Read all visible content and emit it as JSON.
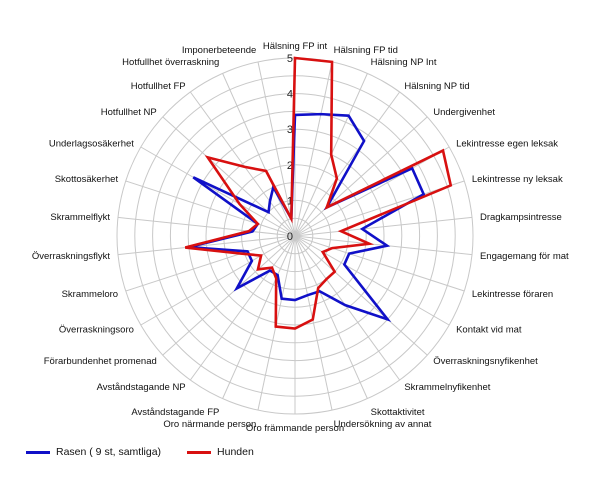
{
  "chart_data": {
    "type": "radar",
    "axis_range": [
      0,
      5
    ],
    "ticks": [
      "0",
      "1",
      "2",
      "3",
      "4",
      "5"
    ],
    "grid": true,
    "legend_position": "bottom-left",
    "categories": [
      "Hälsning FP int",
      "Hälsning FP tid",
      "Hälsning NP Int",
      "Hälsning NP tid",
      "Undergivenhet",
      "Lekintresse egen leksak",
      "Lekintresse ny leksak",
      "Dragkampsintresse",
      "Engagemang för mat",
      "Lekintresse föraren",
      "Kontakt vid mat",
      "Överraskningsnyfikenhet",
      "Skrammelnyfikenhet",
      "Skottaktivitet",
      "Undersökning av annat",
      "Oro främmande person",
      "Oro närmande person",
      "Avståndstagande FP",
      "Avståndstagande NP",
      "Förarbundenhet promenad",
      "Överraskningsoro",
      "Skrammeloro",
      "Överraskningsflykt",
      "Skrammelflykt",
      "Skottosäkerhet",
      "Underlagsosäkerhet",
      "Hotfullhet NP",
      "Hotfullhet FP",
      "Hotfullhet överraskning",
      "Imponerbeteende"
    ],
    "series": [
      {
        "name": "Rasen ( 9 st, samtliga)",
        "color": "#1010c8",
        "values": [
          3.4,
          3.5,
          3.7,
          3.3,
          1.2,
          3.8,
          3.8,
          1.9,
          2.6,
          1.6,
          1.6,
          3.5,
          2.4,
          1.7,
          1.7,
          1.8,
          1.8,
          1.2,
          1.2,
          2.2,
          1.4,
          1.4,
          3.0,
          1.2,
          1.1,
          3.3,
          1.0,
          1.2,
          1.5,
          0.5
        ]
      },
      {
        "name": "Hunden",
        "color": "#d81010",
        "values": [
          5.0,
          5.0,
          2.5,
          2.0,
          1.2,
          4.8,
          4.6,
          1.3,
          2.1,
          1.1,
          0.9,
          1.5,
          1.5,
          1.6,
          2.4,
          2.6,
          2.6,
          1.3,
          1.1,
          1.4,
          1.1,
          1.6,
          3.1,
          1.3,
          1.1,
          1.8,
          3.3,
          2.4,
          2.0,
          0.5
        ]
      }
    ]
  }
}
